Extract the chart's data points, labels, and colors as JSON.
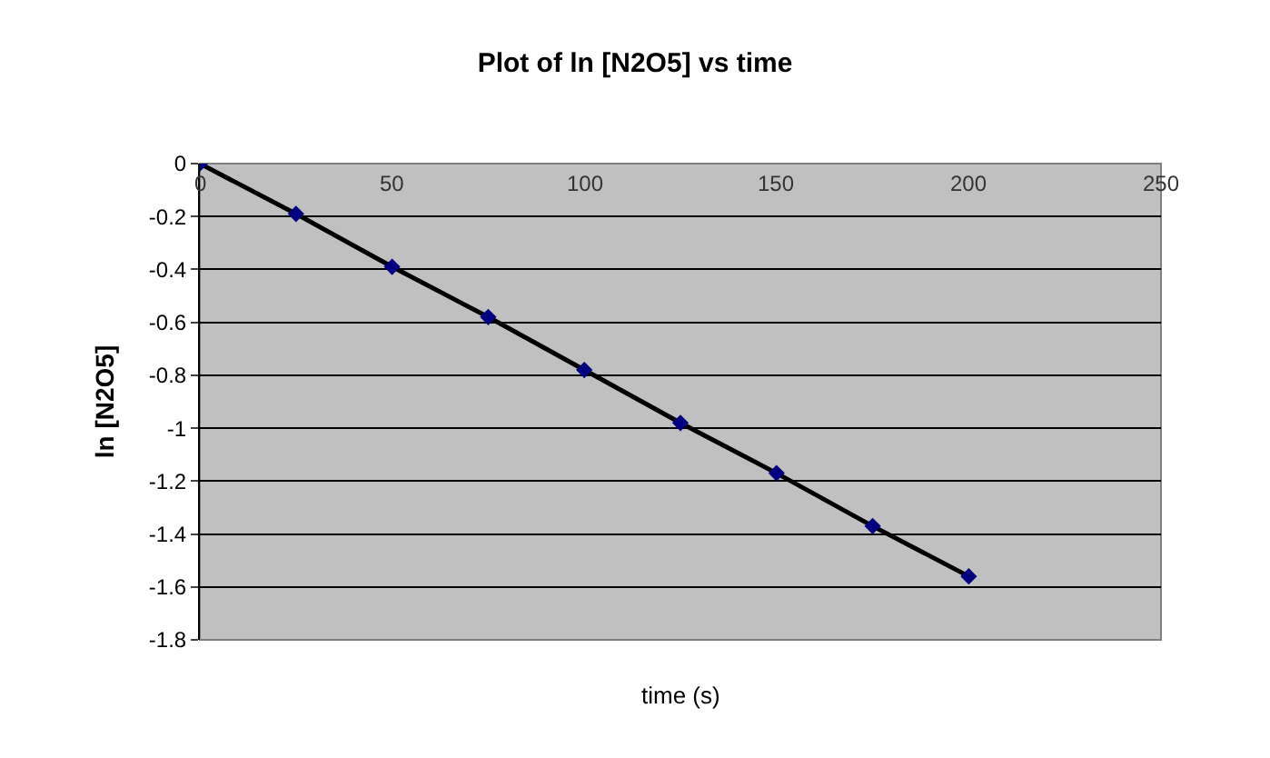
{
  "chart_data": {
    "type": "line",
    "title": "Plot of ln [N2O5] vs time",
    "xlabel": "time (s)",
    "ylabel": "ln [N2O5]",
    "x": [
      0,
      25,
      50,
      75,
      100,
      125,
      150,
      175,
      200
    ],
    "series": [
      {
        "color": "#000000",
        "values": [
          0,
          -0.19,
          -0.39,
          -0.58,
          -0.78,
          -0.98,
          -1.17,
          -1.37,
          -1.56
        ]
      }
    ],
    "xlim": [
      0,
      250
    ],
    "xticks": [
      0,
      50,
      100,
      150,
      200,
      250
    ],
    "ylim": [
      -1.8,
      0
    ],
    "yticks": [
      0,
      -0.2,
      -0.4,
      -0.6,
      -0.8,
      -1,
      -1.2,
      -1.4,
      -1.6,
      -1.8
    ],
    "grid": "y",
    "marker": "diamond",
    "line_style": "solid"
  }
}
